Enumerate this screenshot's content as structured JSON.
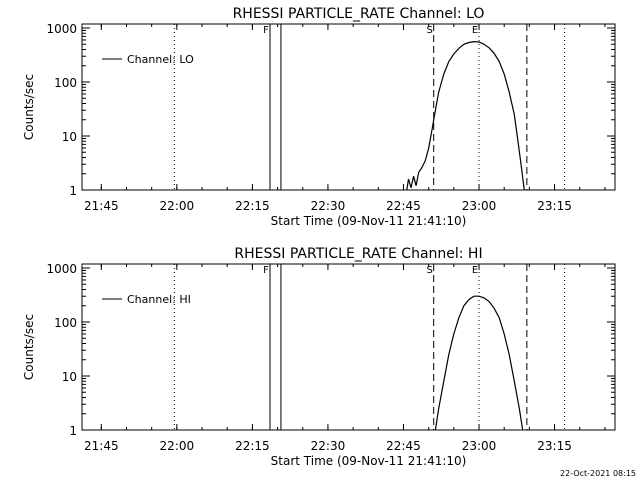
{
  "timestamp": "22-Oct-2021 08:15",
  "chart_data": [
    {
      "type": "line",
      "title": "RHESSI PARTICLE_RATE Channel: LO",
      "xlabel": "Start Time (09-Nov-11 21:41:10)",
      "ylabel": "Counts/sec",
      "y_scale": "log",
      "xlim": [
        "21:41:10",
        "23:27:00"
      ],
      "ylim": [
        1,
        1000
      ],
      "x_ticks": [
        "21:45",
        "22:00",
        "22:15",
        "22:30",
        "22:45",
        "23:00",
        "23:15"
      ],
      "y_ticks": [
        "1",
        "10",
        "100",
        "1000"
      ],
      "legend": {
        "position": "top-left",
        "entries": [
          "Channel: LO"
        ]
      },
      "markers": [
        {
          "label": "F",
          "time": "22:18:30",
          "style": "solid"
        },
        {
          "label": "",
          "time": "22:20:40",
          "style": "solid"
        },
        {
          "label": "S",
          "time": "22:51:00",
          "style": "dashed"
        },
        {
          "label": "",
          "time": "23:09:30",
          "style": "dashed"
        },
        {
          "label": "",
          "time": "21:59:30",
          "style": "dotted"
        },
        {
          "label": "E",
          "time": "23:00:00",
          "style": "dotted"
        },
        {
          "label": "",
          "time": "23:17:00",
          "style": "dotted"
        }
      ],
      "series": [
        {
          "name": "Channel: LO",
          "x": [
            "22:45:40",
            "22:46:00",
            "22:46:30",
            "22:47:00",
            "22:47:30",
            "22:48:00",
            "22:48:40",
            "22:49:20",
            "22:50:00",
            "22:50:40",
            "22:51:20",
            "22:52:00",
            "22:53:00",
            "22:54:00",
            "22:55:00",
            "22:56:00",
            "22:57:00",
            "22:58:00",
            "22:59:00",
            "23:00:00",
            "23:01:00",
            "23:02:00",
            "23:03:00",
            "23:04:00",
            "23:05:00",
            "23:06:00",
            "23:07:00",
            "23:07:40",
            "23:08:20",
            "23:09:00"
          ],
          "y": [
            1,
            1.6,
            1.1,
            1.8,
            1.2,
            2.1,
            2.6,
            3.5,
            6,
            13,
            30,
            65,
            140,
            240,
            330,
            420,
            500,
            540,
            560,
            550,
            500,
            430,
            340,
            240,
            140,
            65,
            25,
            9,
            3,
            1
          ]
        }
      ]
    },
    {
      "type": "line",
      "title": "RHESSI PARTICLE_RATE Channel: HI",
      "xlabel": "Start Time (09-Nov-11 21:41:10)",
      "ylabel": "Counts/sec",
      "y_scale": "log",
      "xlim": [
        "21:41:10",
        "23:27:00"
      ],
      "ylim": [
        1,
        1000
      ],
      "x_ticks": [
        "21:45",
        "22:00",
        "22:15",
        "22:30",
        "22:45",
        "23:00",
        "23:15"
      ],
      "y_ticks": [
        "1",
        "10",
        "100",
        "1000"
      ],
      "legend": {
        "position": "top-left",
        "entries": [
          "Channel: HI"
        ]
      },
      "markers": [
        {
          "label": "F",
          "time": "22:18:30",
          "style": "solid"
        },
        {
          "label": "",
          "time": "22:20:40",
          "style": "solid"
        },
        {
          "label": "S",
          "time": "22:51:00",
          "style": "dashed"
        },
        {
          "label": "",
          "time": "23:09:30",
          "style": "dashed"
        },
        {
          "label": "",
          "time": "21:59:30",
          "style": "dotted"
        },
        {
          "label": "E",
          "time": "23:00:00",
          "style": "dotted"
        },
        {
          "label": "",
          "time": "23:17:00",
          "style": "dotted"
        }
      ],
      "series": [
        {
          "name": "Channel: HI",
          "x": [
            "22:51:20",
            "22:52:00",
            "22:53:00",
            "22:54:00",
            "22:55:00",
            "22:56:00",
            "22:57:00",
            "22:58:00",
            "22:59:00",
            "23:00:00",
            "23:01:00",
            "23:02:00",
            "23:03:00",
            "23:04:00",
            "23:05:00",
            "23:06:00",
            "23:07:00",
            "23:08:00",
            "23:08:40"
          ],
          "y": [
            1,
            2.5,
            8,
            25,
            60,
            120,
            200,
            260,
            300,
            300,
            280,
            240,
            180,
            120,
            60,
            25,
            8,
            2.5,
            1
          ]
        }
      ]
    }
  ]
}
